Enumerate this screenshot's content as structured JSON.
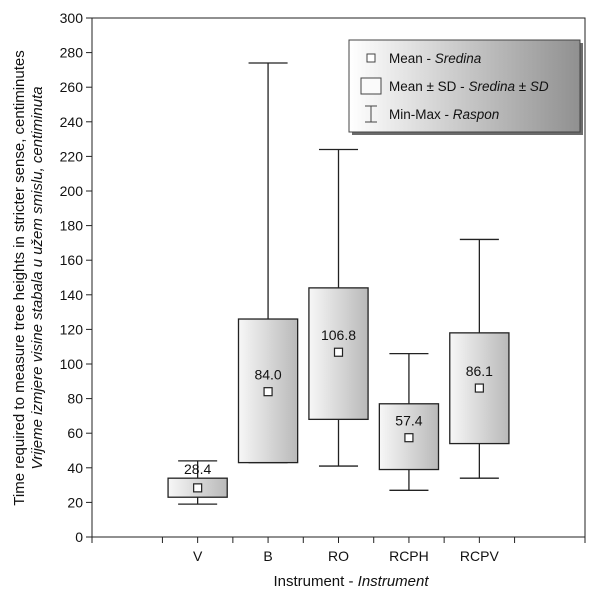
{
  "chart_data": {
    "type": "boxplot",
    "categories": [
      "V",
      "B",
      "RO",
      "RCPH",
      "RCPV"
    ],
    "series": [
      {
        "category": "V",
        "mean": 28.4,
        "mean_minus_sd": 23,
        "mean_plus_sd": 34,
        "min": 19,
        "max": 44
      },
      {
        "category": "B",
        "mean": 84.0,
        "mean_minus_sd": 43,
        "mean_plus_sd": 126,
        "min": 43,
        "max": 274
      },
      {
        "category": "RO",
        "mean": 106.8,
        "mean_minus_sd": 68,
        "mean_plus_sd": 144,
        "min": 41,
        "max": 224
      },
      {
        "category": "RCPH",
        "mean": 57.4,
        "mean_minus_sd": 39,
        "mean_plus_sd": 77,
        "min": 27,
        "max": 106
      },
      {
        "category": "RCPV",
        "mean": 86.1,
        "mean_minus_sd": 54,
        "mean_plus_sd": 118,
        "min": 34,
        "max": 172
      }
    ],
    "mean_labels": [
      "28.4",
      "84.0",
      "106.8",
      "57.4",
      "86.1"
    ],
    "xlabel": "Instrument - ",
    "xlabel_italic": "Instrument",
    "ylabel_line1": "Time required to measure tree heights in stricter sense, centiminutes",
    "ylabel_line2": "Vrijeme izmjere visine stabala u užem smislu, centiminuta",
    "ylim": [
      0,
      300
    ],
    "yticks": [
      0,
      20,
      40,
      60,
      80,
      100,
      120,
      140,
      160,
      180,
      200,
      220,
      240,
      260,
      280,
      300
    ],
    "x_slots": 7,
    "legend": {
      "position": "top-right",
      "items": [
        {
          "symbol": "mean-square",
          "text": "Mean - ",
          "italic": "Sredina"
        },
        {
          "symbol": "sd-box",
          "text": "Mean ± SD - ",
          "italic": "Sredina ± SD"
        },
        {
          "symbol": "whisker",
          "text": "Min-Max - ",
          "italic": "Raspon"
        }
      ]
    },
    "colors": {
      "box_light": "#f7f7f7",
      "box_dark": "#b9b9b9",
      "legend_light": "#ffffff",
      "legend_dark": "#909090",
      "line": "#222222"
    }
  }
}
